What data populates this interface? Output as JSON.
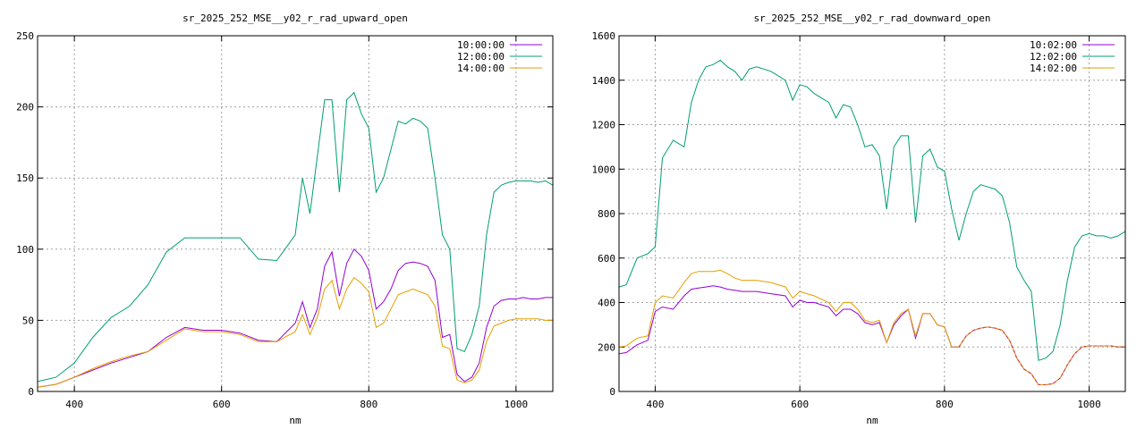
{
  "colors": {
    "series_1": "#9400d3",
    "series_2": "#009e73",
    "series_3": "#e69f00",
    "series_3_dash": "#d0304a",
    "grid": "#a0a0a0",
    "axes": "#000000"
  },
  "chart_data": [
    {
      "type": "line",
      "title": "sr_2025_252_MSE__y02_r_rad_upward_open",
      "xlabel": "nm",
      "ylabel": "",
      "xlim": [
        350,
        1050
      ],
      "ylim": [
        0,
        250
      ],
      "xticks": [
        400,
        600,
        800,
        1000
      ],
      "yticks": [
        0,
        50,
        100,
        150,
        200,
        250
      ],
      "grid": true,
      "legend_position": "top-right",
      "legend": [
        "10:00:00",
        "12:00:00",
        "14:00:00"
      ],
      "x": [
        350,
        375,
        400,
        425,
        450,
        475,
        500,
        525,
        550,
        575,
        600,
        625,
        650,
        675,
        700,
        710,
        720,
        730,
        740,
        750,
        760,
        770,
        780,
        790,
        800,
        810,
        820,
        830,
        840,
        850,
        860,
        870,
        880,
        890,
        900,
        910,
        920,
        930,
        940,
        950,
        960,
        970,
        980,
        990,
        1000,
        1010,
        1020,
        1030,
        1040,
        1050
      ],
      "series": [
        {
          "name": "10:00:00",
          "color_key": "series_1",
          "values": [
            3,
            5,
            10,
            15,
            20,
            24,
            28,
            38,
            45,
            43,
            43,
            41,
            36,
            35,
            48,
            63,
            45,
            58,
            88,
            98,
            67,
            90,
            100,
            95,
            85,
            58,
            63,
            72,
            85,
            90,
            91,
            90,
            88,
            78,
            38,
            40,
            12,
            7,
            10,
            20,
            45,
            60,
            64,
            65,
            65,
            66,
            65,
            65,
            66,
            66
          ]
        },
        {
          "name": "12:00:00",
          "color_key": "series_2",
          "values": [
            7,
            10,
            20,
            38,
            52,
            60,
            75,
            98,
            108,
            108,
            108,
            108,
            93,
            92,
            110,
            150,
            125,
            165,
            205,
            205,
            140,
            205,
            210,
            195,
            185,
            140,
            150,
            170,
            190,
            188,
            192,
            190,
            185,
            150,
            110,
            100,
            30,
            28,
            40,
            60,
            110,
            140,
            145,
            147,
            148,
            148,
            148,
            147,
            148,
            145
          ]
        },
        {
          "name": "14:00:00",
          "color_key": "series_3",
          "values": [
            3,
            5,
            10,
            16,
            21,
            25,
            28,
            36,
            44,
            42,
            42,
            40,
            35,
            35,
            42,
            54,
            40,
            52,
            72,
            78,
            58,
            72,
            80,
            76,
            70,
            45,
            48,
            58,
            68,
            70,
            72,
            70,
            68,
            60,
            32,
            30,
            8,
            6,
            8,
            15,
            35,
            46,
            48,
            50,
            51,
            51,
            51,
            51,
            50,
            50
          ]
        }
      ]
    },
    {
      "type": "line",
      "title": "sr_2025_252_MSE__y02_r_rad_downward_open",
      "xlabel": "nm",
      "ylabel": "",
      "xlim": [
        350,
        1050
      ],
      "ylim": [
        0,
        1600
      ],
      "xticks": [
        400,
        600,
        800,
        1000
      ],
      "yticks": [
        0,
        200,
        400,
        600,
        800,
        1000,
        1200,
        1400,
        1600
      ],
      "grid": true,
      "legend_position": "top-right",
      "legend": [
        "10:02:00",
        "12:02:00",
        "14:02:00"
      ],
      "x": [
        350,
        360,
        375,
        390,
        400,
        410,
        425,
        440,
        450,
        460,
        470,
        480,
        490,
        500,
        510,
        520,
        530,
        540,
        560,
        580,
        590,
        600,
        610,
        620,
        640,
        650,
        660,
        670,
        680,
        690,
        700,
        710,
        720,
        730,
        740,
        750,
        760,
        770,
        780,
        790,
        800,
        810,
        820,
        830,
        840,
        850,
        860,
        870,
        880,
        890,
        900,
        910,
        920,
        930,
        940,
        950,
        960,
        970,
        980,
        990,
        1000,
        1010,
        1020,
        1030,
        1040,
        1050
      ],
      "series": [
        {
          "name": "10:02:00",
          "color_key": "series_1",
          "values": [
            170,
            175,
            210,
            230,
            360,
            380,
            370,
            430,
            460,
            465,
            470,
            475,
            470,
            460,
            455,
            450,
            450,
            450,
            440,
            430,
            380,
            410,
            400,
            400,
            380,
            340,
            370,
            370,
            350,
            310,
            300,
            310,
            220,
            300,
            340,
            370,
            240,
            350,
            350,
            300,
            290,
            200,
            200,
            250,
            275,
            285,
            290,
            285,
            275,
            230,
            150,
            100,
            80,
            30,
            30,
            35,
            60,
            120,
            170,
            200,
            205,
            205,
            205,
            205,
            200,
            200
          ]
        },
        {
          "name": "12:02:00",
          "color_key": "series_2",
          "values": [
            470,
            480,
            600,
            620,
            650,
            1050,
            1130,
            1100,
            1300,
            1400,
            1460,
            1470,
            1490,
            1460,
            1440,
            1400,
            1450,
            1460,
            1440,
            1400,
            1310,
            1380,
            1370,
            1340,
            1300,
            1230,
            1290,
            1280,
            1200,
            1100,
            1110,
            1060,
            820,
            1100,
            1150,
            1150,
            760,
            1060,
            1090,
            1010,
            990,
            820,
            680,
            800,
            900,
            930,
            920,
            910,
            880,
            760,
            560,
            500,
            450,
            140,
            150,
            180,
            300,
            500,
            650,
            700,
            710,
            700,
            700,
            690,
            700,
            720
          ]
        },
        {
          "name": "14:02:00",
          "color_key": "series_3",
          "values": [
            200,
            205,
            240,
            250,
            400,
            430,
            420,
            490,
            530,
            540,
            540,
            540,
            545,
            530,
            510,
            500,
            500,
            500,
            490,
            470,
            420,
            450,
            440,
            430,
            400,
            360,
            400,
            400,
            370,
            320,
            310,
            320,
            220,
            310,
            350,
            370,
            250,
            350,
            350,
            300,
            290,
            200,
            200,
            250,
            275,
            285,
            290,
            285,
            275,
            230,
            150,
            100,
            80,
            30,
            30,
            35,
            60,
            120,
            170,
            200,
            205,
            205,
            205,
            205,
            200,
            200
          ]
        }
      ]
    }
  ]
}
